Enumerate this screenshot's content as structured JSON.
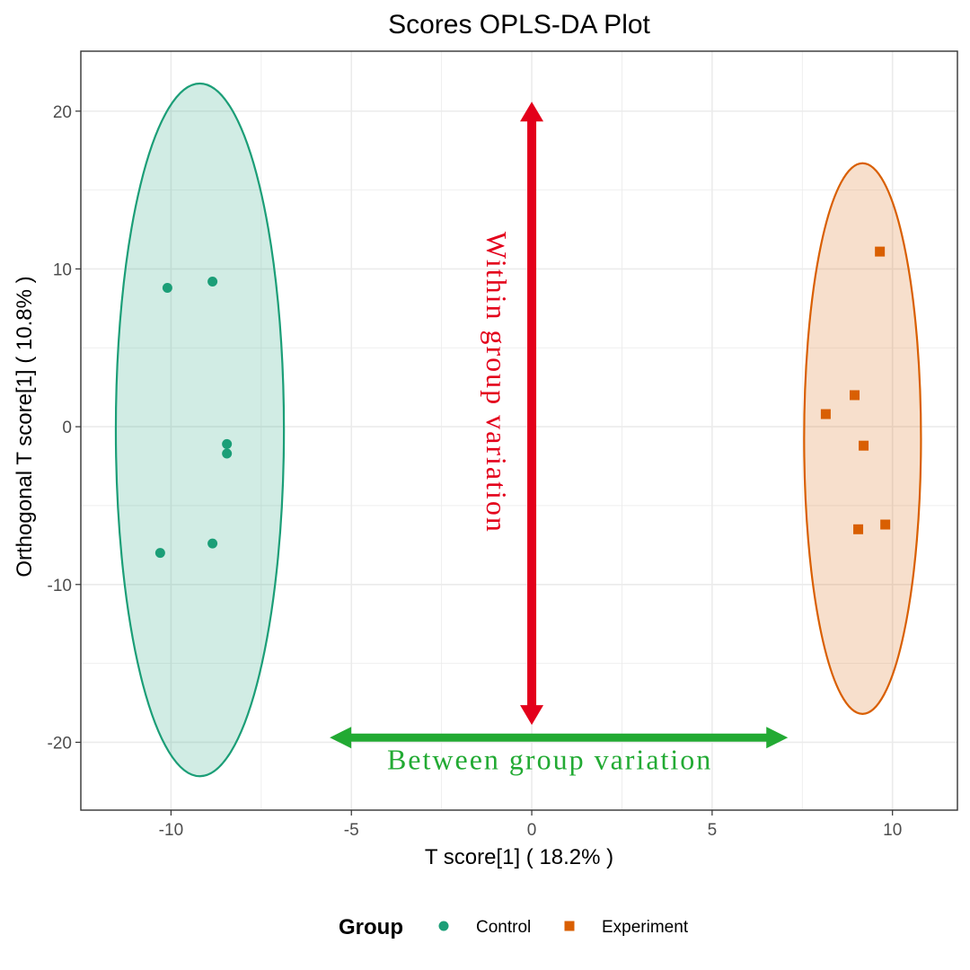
{
  "colors": {
    "control": "#1b9e77",
    "experiment": "#d95f02",
    "within_arrow": "#e3001b",
    "between_arrow": "#22aa33",
    "grid": "#ebebeb",
    "panel_border": "#333333"
  },
  "chart_data": {
    "type": "scatter",
    "title": "Scores OPLS-DA Plot",
    "xlabel": "T score[1] ( 18.2% )",
    "ylabel": "Orthogonal T score[1] ( 10.8% )",
    "xlim": [
      -12.5,
      11.8
    ],
    "ylim": [
      -24.3,
      23.8
    ],
    "x_ticks": [
      -10,
      -5,
      0,
      5,
      10
    ],
    "x_tick_labels": [
      "-10",
      "-5",
      "0",
      "5",
      "10"
    ],
    "y_ticks": [
      -20,
      -10,
      0,
      10,
      20
    ],
    "y_tick_labels": [
      "-20",
      "-10",
      "0",
      "10",
      "20"
    ],
    "grid": true,
    "series": [
      {
        "name": "Control",
        "marker": "circle",
        "color": "#1b9e77",
        "points": [
          {
            "x": -10.1,
            "y": 8.8
          },
          {
            "x": -8.85,
            "y": 9.2
          },
          {
            "x": -8.45,
            "y": -1.1
          },
          {
            "x": -8.45,
            "y": -1.7
          },
          {
            "x": -10.3,
            "y": -8.0
          },
          {
            "x": -8.85,
            "y": -7.4
          }
        ],
        "ellipse": {
          "cx": -9.2,
          "cy": -0.2,
          "rx": 2.33,
          "ry": 21.95
        }
      },
      {
        "name": "Experiment",
        "marker": "square",
        "color": "#d95f02",
        "points": [
          {
            "x": 9.65,
            "y": 11.1
          },
          {
            "x": 8.95,
            "y": 2.0
          },
          {
            "x": 8.15,
            "y": 0.8
          },
          {
            "x": 9.2,
            "y": -1.2
          },
          {
            "x": 9.05,
            "y": -6.5
          },
          {
            "x": 9.8,
            "y": -6.2
          }
        ],
        "ellipse": {
          "cx": 9.17,
          "cy": -0.75,
          "rx": 1.62,
          "ry": 17.45
        }
      }
    ],
    "annotations": {
      "within": {
        "text": "Within group variation",
        "x": 0,
        "y_from": -18.9,
        "y_to": 20.6
      },
      "between": {
        "text": "Between group variation",
        "y": -19.7,
        "x_from": -5.6,
        "x_to": 7.1
      }
    },
    "legend": {
      "title": "Group",
      "position": "bottom",
      "items": [
        "Control",
        "Experiment"
      ]
    }
  }
}
